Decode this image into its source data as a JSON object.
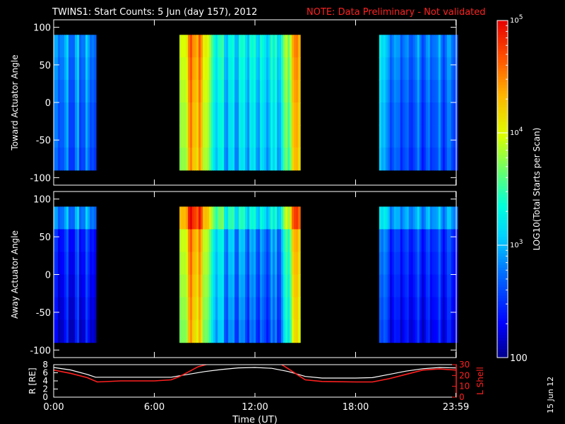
{
  "header": {
    "title": "TWINS1: Start Counts:  5 Jun (day 157), 2012",
    "note": "NOTE: Data Preliminary - Not validated"
  },
  "footer": {
    "date_stamp": "15 Jun 12"
  },
  "colors": {
    "background": "#000000",
    "note": "#ff2020",
    "r_line": "#ffffff",
    "l_shell_line": "#ff2020"
  },
  "chart_data": [
    {
      "type": "heatmap",
      "name": "toward",
      "ylabel": "Toward Actuator Angle",
      "ylim": [
        -110,
        110
      ],
      "yticks": [
        "100",
        "50",
        "0",
        "-50",
        "-100"
      ],
      "ytick_values": [
        100,
        50,
        0,
        -50,
        -100
      ],
      "xlim": [
        0,
        24
      ],
      "data_y_range": [
        -90,
        90
      ],
      "data_intervals_hours": [
        [
          0,
          2.5
        ],
        [
          7.5,
          14.6
        ],
        [
          19.4,
          24
        ]
      ],
      "colorscale": "log10 counts, 100 to 100000",
      "time_profile_log10": [
        {
          "t": 0.0,
          "v": 2.9
        },
        {
          "t": 0.3,
          "v": 3.0
        },
        {
          "t": 1.0,
          "v": 2.9
        },
        {
          "t": 2.5,
          "v": 2.95
        },
        {
          "t": 7.5,
          "v": 3.9
        },
        {
          "t": 8.2,
          "v": 4.6
        },
        {
          "t": 8.8,
          "v": 4.4
        },
        {
          "t": 9.5,
          "v": 3.4
        },
        {
          "t": 10.5,
          "v": 3.2
        },
        {
          "t": 11.5,
          "v": 3.25
        },
        {
          "t": 12.5,
          "v": 3.2
        },
        {
          "t": 13.5,
          "v": 3.3
        },
        {
          "t": 14.2,
          "v": 4.2
        },
        {
          "t": 14.6,
          "v": 4.4
        },
        {
          "t": 19.4,
          "v": 3.5
        },
        {
          "t": 19.8,
          "v": 2.95
        },
        {
          "t": 21.0,
          "v": 2.8
        },
        {
          "t": 24.0,
          "v": 2.8
        }
      ]
    },
    {
      "type": "heatmap",
      "name": "away",
      "ylabel": "Away Actuator Angle",
      "ylim": [
        -110,
        110
      ],
      "yticks": [
        "100",
        "50",
        "0",
        "-50",
        "-100"
      ],
      "ytick_values": [
        100,
        50,
        0,
        -50,
        -100
      ],
      "xlim": [
        0,
        24
      ],
      "data_y_range": [
        -90,
        90
      ],
      "data_intervals_hours": [
        [
          0,
          2.5
        ],
        [
          7.5,
          14.6
        ],
        [
          19.4,
          24
        ]
      ],
      "colorscale": "log10 counts, 100 to 100000",
      "time_profile_log10": [
        {
          "t": 0.0,
          "v": 2.55
        },
        {
          "t": 1.0,
          "v": 2.55
        },
        {
          "t": 2.5,
          "v": 2.6
        },
        {
          "t": 7.5,
          "v": 3.9
        },
        {
          "t": 8.2,
          "v": 4.6
        },
        {
          "t": 8.8,
          "v": 4.3
        },
        {
          "t": 9.5,
          "v": 3.3
        },
        {
          "t": 10.5,
          "v": 3.0
        },
        {
          "t": 11.5,
          "v": 2.9
        },
        {
          "t": 12.5,
          "v": 2.8
        },
        {
          "t": 13.5,
          "v": 2.9
        },
        {
          "t": 14.2,
          "v": 4.1
        },
        {
          "t": 14.6,
          "v": 4.3
        },
        {
          "t": 19.4,
          "v": 3.1
        },
        {
          "t": 20.0,
          "v": 2.6
        },
        {
          "t": 24.0,
          "v": 2.55
        }
      ]
    },
    {
      "type": "line",
      "name": "orbit",
      "ylabel_left": "R [RE]",
      "ylabel_right": "L Shell",
      "ylim_left": [
        0,
        8
      ],
      "ylim_right": [
        0,
        30
      ],
      "yticks_left": [
        "0",
        "2",
        "4",
        "6",
        "8"
      ],
      "ytick_values_left": [
        0,
        2,
        4,
        6,
        8
      ],
      "yticks_right": [
        "0",
        "10",
        "20",
        "30"
      ],
      "ytick_values_right": [
        0,
        10,
        20,
        30
      ],
      "xlim": [
        0,
        24
      ],
      "xlabel": "Time (UT)",
      "xticks": [
        "0:00",
        "6:00",
        "12:00",
        "18:00",
        "23:59"
      ],
      "xtick_values": [
        0,
        6,
        12,
        18,
        23.98
      ],
      "series": [
        {
          "axis": "left",
          "x": [
            0,
            1,
            2,
            2.5,
            4,
            6,
            7,
            8,
            9,
            10,
            11,
            12,
            13,
            14,
            15,
            16,
            18,
            19,
            20,
            21,
            22,
            23,
            24
          ],
          "y": [
            7.3,
            6.7,
            5.6,
            4.9,
            4.9,
            4.9,
            4.9,
            5.6,
            6.3,
            6.8,
            7.2,
            7.3,
            7.1,
            6.3,
            5.1,
            4.7,
            4.7,
            4.8,
            5.6,
            6.4,
            7.0,
            7.3,
            7.2
          ]
        },
        {
          "axis": "right",
          "x": [
            0,
            1,
            2,
            2.6,
            4,
            6,
            7,
            7.5,
            8,
            8.6,
            9.3,
            13.5,
            14,
            14.6,
            15,
            16,
            18,
            19,
            20,
            21,
            22,
            23,
            24
          ],
          "y": [
            25,
            22,
            18,
            14,
            15,
            15,
            16,
            19,
            23,
            28,
            31,
            31,
            26,
            20,
            16,
            14.5,
            14,
            14,
            17,
            21,
            25,
            26,
            25
          ]
        }
      ]
    },
    {
      "type": "colorbar",
      "name": "colorbar",
      "scale": "log",
      "range": [
        100,
        100000
      ],
      "label": "LOG10(Total Starts per Scan)",
      "tick_labels": [
        {
          "base": "10",
          "exp": "5",
          "value": 100000
        },
        {
          "base": "10",
          "exp": "4",
          "value": 10000
        },
        {
          "base": "10",
          "exp": "3",
          "value": 1000
        },
        {
          "base": "100",
          "exp": "",
          "value": 100
        }
      ]
    }
  ]
}
